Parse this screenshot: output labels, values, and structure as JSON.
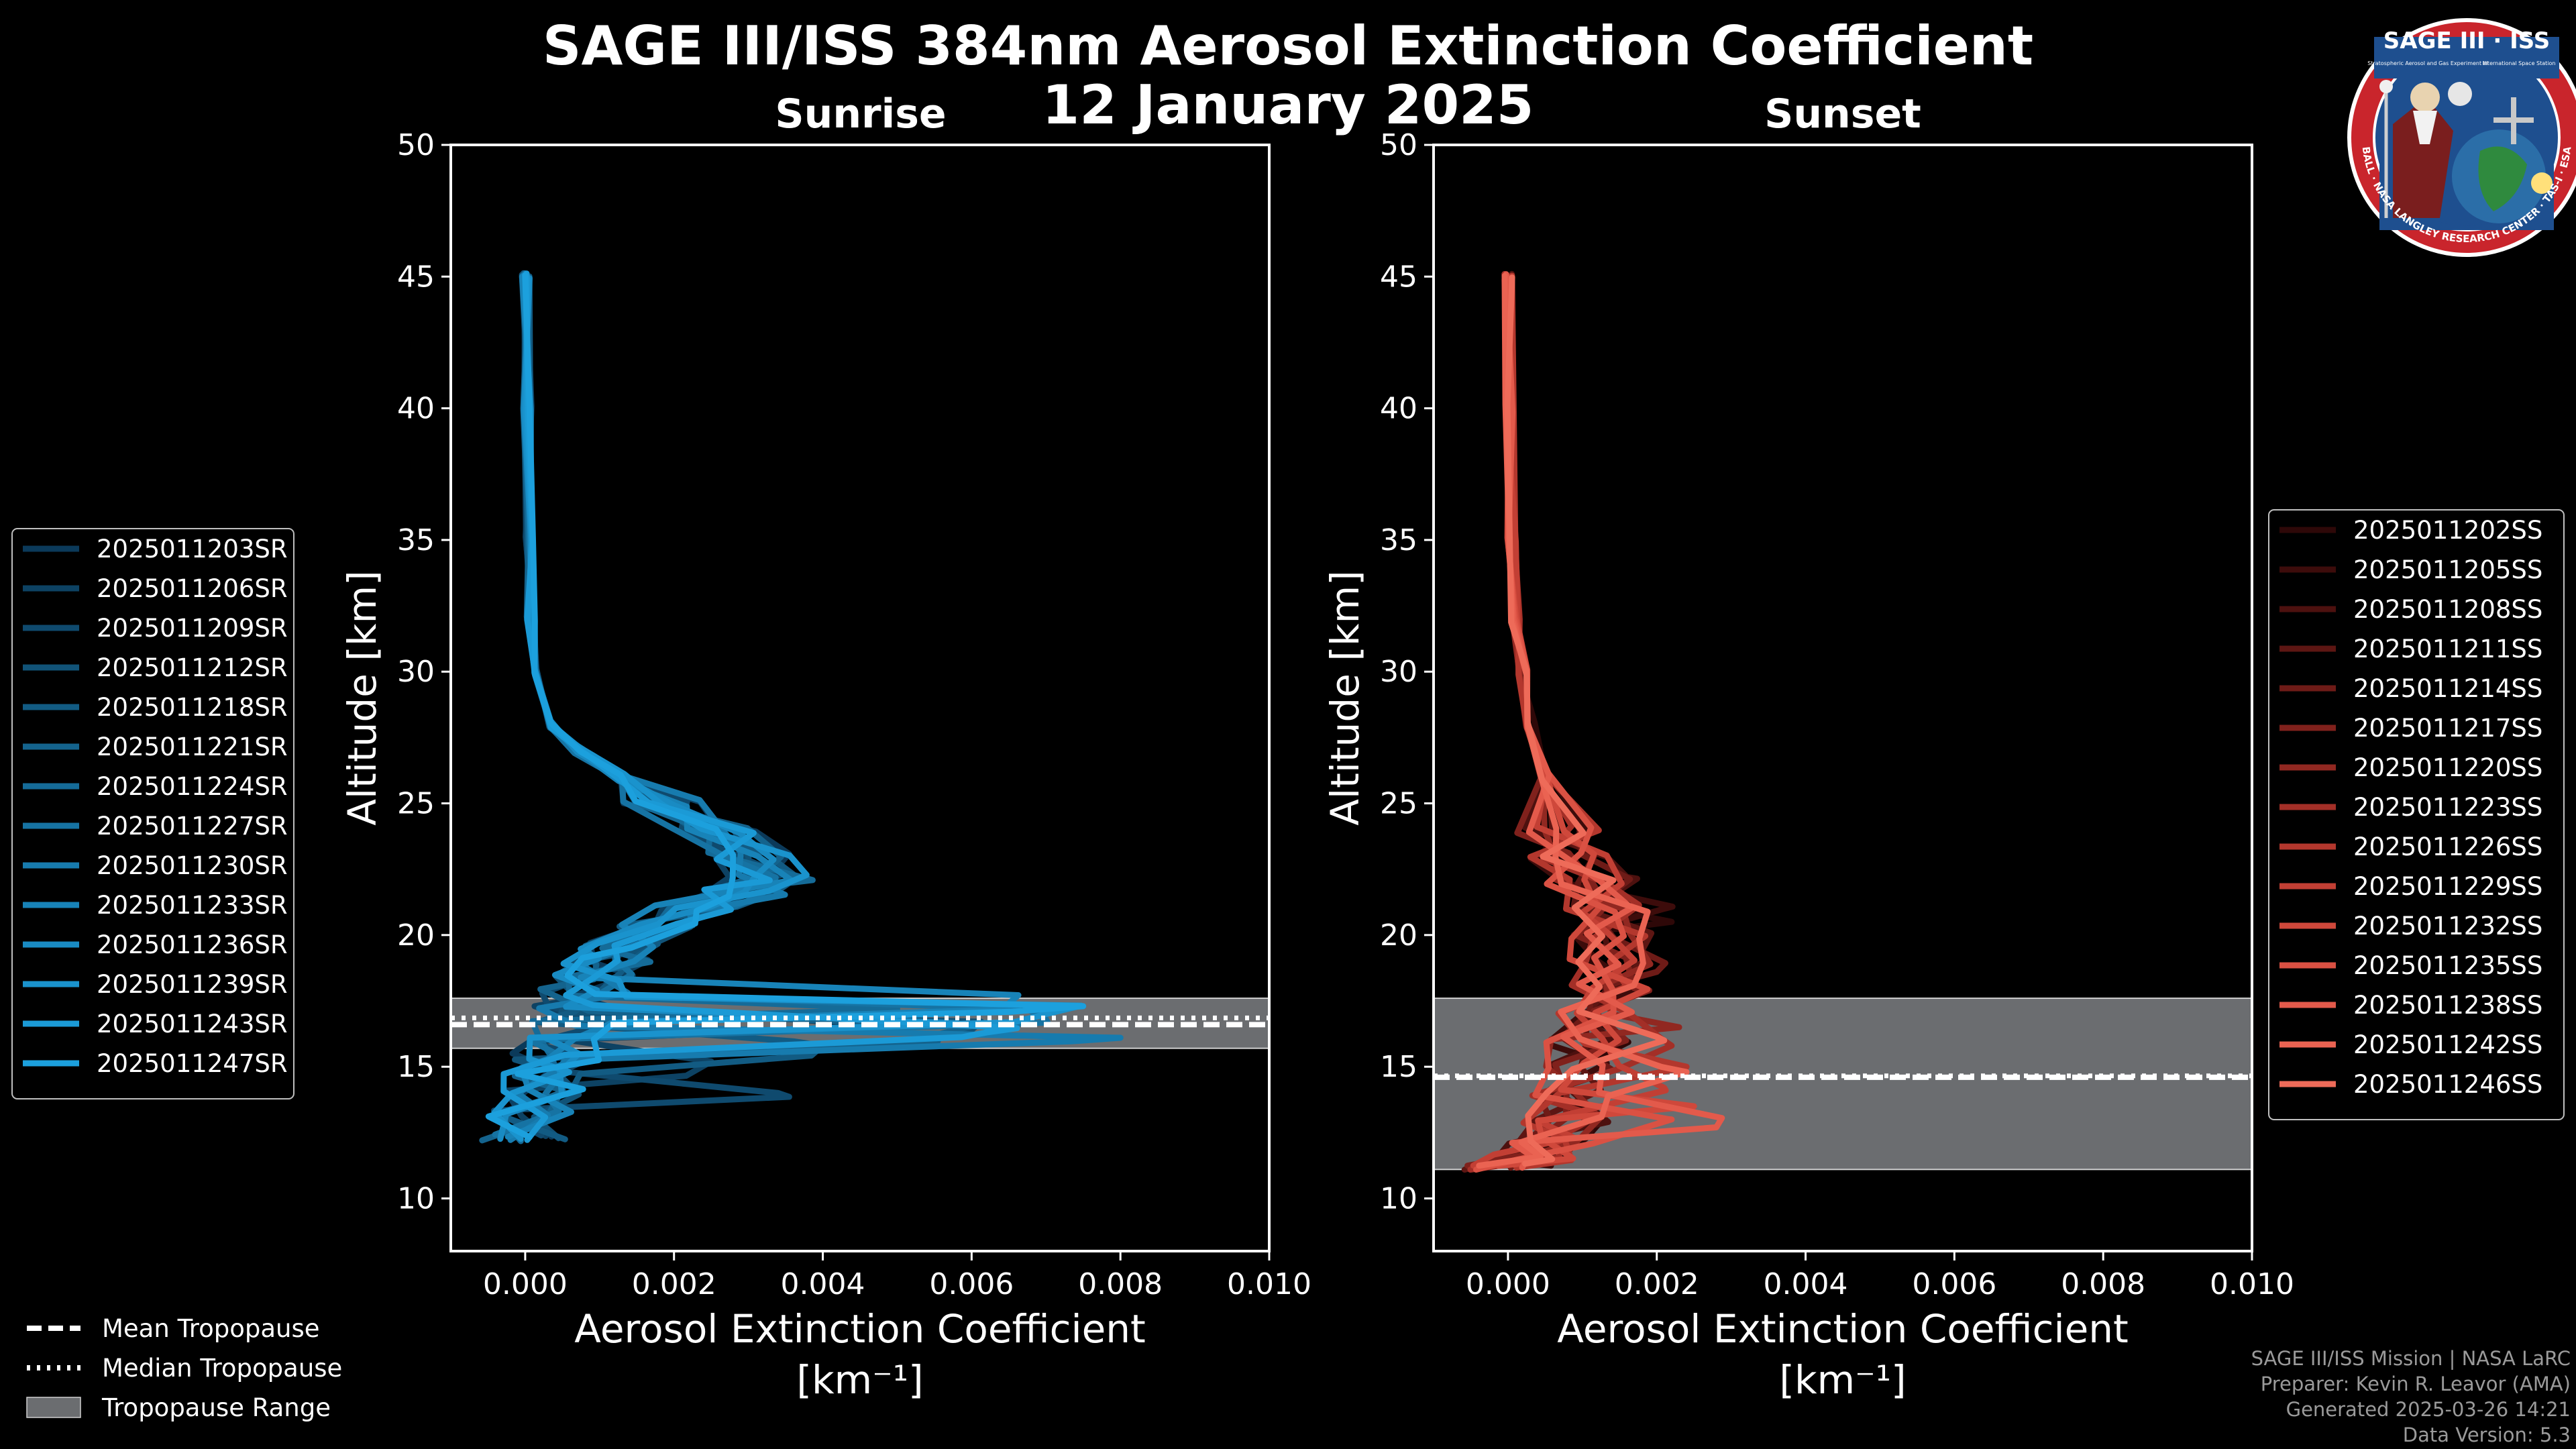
{
  "title": "SAGE III/ISS 384nm Aerosol Extinction Coefficient",
  "subtitle": "12 January 2025",
  "logo": {
    "top_text": "SAGE III · ISS",
    "small_text_left": "Stratospheric Aerosol and Gas Experiment III",
    "small_text_right": "International Space Station",
    "ring_text": "BALL · NASA LANGLEY RESEARCH CENTER · TAS-I · ESA"
  },
  "legend_bottom": [
    {
      "label": "Mean Tropopause",
      "style": "dashed"
    },
    {
      "label": "Median Tropopause",
      "style": "dotted"
    },
    {
      "label": "Tropopause Range",
      "style": "patch"
    }
  ],
  "footer": [
    "SAGE III/ISS Mission | NASA LaRC",
    "Preparer: Kevin R. Leavor (AMA)",
    "Generated 2025-03-26 14:21",
    "Data Version: 5.3"
  ],
  "chart_data": [
    {
      "type": "line",
      "title": "Sunrise",
      "xlabel": "Aerosol Extinction Coefficient",
      "xunit": "[km⁻¹]",
      "ylabel": "Altitude [km]",
      "xlim": [
        -0.001,
        0.01
      ],
      "ylim": [
        8,
        50
      ],
      "xticks": [
        "0.000",
        "0.002",
        "0.004",
        "0.006",
        "0.008",
        "0.010"
      ],
      "yticks": [
        "10",
        "15",
        "20",
        "25",
        "30",
        "35",
        "40",
        "45",
        "50"
      ],
      "tropopause": {
        "mean": 16.6,
        "median": 16.7,
        "range": [
          15.7,
          17.6
        ]
      },
      "base_profile": [
        [
          1e-05,
          45
        ],
        [
          3e-05,
          40
        ],
        [
          5e-05,
          35
        ],
        [
          8e-05,
          32
        ],
        [
          0.00015,
          30
        ],
        [
          0.0003,
          28
        ],
        [
          0.0007,
          27
        ],
        [
          0.0013,
          26
        ],
        [
          0.0019,
          25
        ],
        [
          0.0025,
          24
        ],
        [
          0.003,
          23
        ],
        [
          0.0033,
          22.2
        ],
        [
          0.0029,
          21.6
        ],
        [
          0.0023,
          21
        ],
        [
          0.0017,
          20.3
        ],
        [
          0.0013,
          19.6
        ],
        [
          0.0011,
          19
        ],
        [
          0.0009,
          18.4
        ],
        [
          0.0008,
          17.8
        ],
        [
          0.0007,
          17.2
        ],
        [
          0.0006,
          16.6
        ],
        [
          0.0005,
          16
        ],
        [
          0.0004,
          15.4
        ],
        [
          0.0003,
          14.8
        ],
        [
          0.0002,
          14
        ],
        [
          0.0001,
          13.2
        ],
        [
          0.0,
          12.3
        ]
      ],
      "series": [
        {
          "name": "2025011203SR",
          "color": "#0b3a5a",
          "spike": 0.0045,
          "spike_alt": 16.5,
          "seed": 1
        },
        {
          "name": "2025011206SR",
          "color": "#0d4263",
          "spike": 0.0025,
          "spike_alt": 15.2,
          "seed": 2
        },
        {
          "name": "2025011209SR",
          "color": "#0f4a6e",
          "spike": 0.0034,
          "spike_alt": 14.0,
          "seed": 3
        },
        {
          "name": "2025011212SR",
          "color": "#115378",
          "spike": 0.006,
          "spike_alt": 16.4,
          "seed": 4
        },
        {
          "name": "2025011218SR",
          "color": "#125b83",
          "spike": 0.004,
          "spike_alt": 15.8,
          "seed": 5
        },
        {
          "name": "2025011221SR",
          "color": "#14638d",
          "spike": 0.0055,
          "spike_alt": 16.2,
          "seed": 6
        },
        {
          "name": "2025011224SR",
          "color": "#156b98",
          "spike": 0.005,
          "spike_alt": 17.2,
          "seed": 7
        },
        {
          "name": "2025011227SR",
          "color": "#1673a3",
          "spike": 0.007,
          "spike_alt": 16.8,
          "seed": 8
        },
        {
          "name": "2025011230SR",
          "color": "#177bae",
          "spike": 0.008,
          "spike_alt": 16.1,
          "seed": 9
        },
        {
          "name": "2025011233SR",
          "color": "#1883b8",
          "spike": 0.0065,
          "spike_alt": 17.4,
          "seed": 10
        },
        {
          "name": "2025011236SR",
          "color": "#198bc3",
          "spike": 0.0058,
          "spike_alt": 16.6,
          "seed": 11
        },
        {
          "name": "2025011239SR",
          "color": "#1a93cd",
          "spike": 0.007,
          "spike_alt": 17.0,
          "seed": 12
        },
        {
          "name": "2025011243SR",
          "color": "#1b9ad6",
          "spike": 0.0062,
          "spike_alt": 16.3,
          "seed": 13
        },
        {
          "name": "2025011247SR",
          "color": "#1ca0dd",
          "spike": 0.0075,
          "spike_alt": 17.3,
          "seed": 14
        }
      ]
    },
    {
      "type": "line",
      "title": "Sunset",
      "xlabel": "Aerosol Extinction Coefficient",
      "xunit": "[km⁻¹]",
      "ylabel": "Altitude [km]",
      "xlim": [
        -0.001,
        0.01
      ],
      "ylim": [
        8,
        50
      ],
      "xticks": [
        "0.000",
        "0.002",
        "0.004",
        "0.006",
        "0.008",
        "0.010"
      ],
      "yticks": [
        "10",
        "15",
        "20",
        "25",
        "30",
        "35",
        "40",
        "45",
        "50"
      ],
      "tropopause": {
        "mean": 14.6,
        "median": 14.5,
        "range": [
          11.1,
          17.6
        ]
      },
      "base_profile": [
        [
          0.0,
          45
        ],
        [
          2e-05,
          40
        ],
        [
          5e-05,
          35
        ],
        [
          0.0001,
          32
        ],
        [
          0.0002,
          30
        ],
        [
          0.0003,
          28
        ],
        [
          0.0005,
          26
        ],
        [
          0.0007,
          24
        ],
        [
          0.0009,
          23
        ],
        [
          0.0011,
          22
        ],
        [
          0.0013,
          21
        ],
        [
          0.0014,
          20
        ],
        [
          0.0014,
          19
        ],
        [
          0.0013,
          18
        ],
        [
          0.0012,
          17
        ],
        [
          0.0011,
          16
        ],
        [
          0.001,
          15
        ],
        [
          0.0009,
          14
        ],
        [
          0.0008,
          13
        ],
        [
          0.0006,
          12.2
        ],
        [
          0.0003,
          11.6
        ],
        [
          0.0,
          11.2
        ]
      ],
      "series": [
        {
          "name": "2025011202SS",
          "color": "#2e0808",
          "spike": 0.0022,
          "spike_alt": 20.5,
          "seed": 21
        },
        {
          "name": "2025011205SS",
          "color": "#3d0c0b",
          "spike": 0.0021,
          "spike_alt": 21.0,
          "seed": 22
        },
        {
          "name": "2025011208SS",
          "color": "#4d110f",
          "spike": 0.0016,
          "spike_alt": 22.2,
          "seed": 23
        },
        {
          "name": "2025011211SS",
          "color": "#5d1613",
          "spike": 0.0018,
          "spike_alt": 19.4,
          "seed": 24
        },
        {
          "name": "2025011214SS",
          "color": "#6e1b17",
          "spike": 0.002,
          "spike_alt": 18.6,
          "seed": 25
        },
        {
          "name": "2025011217SS",
          "color": "#80211c",
          "spike": 0.0019,
          "spike_alt": 17.9,
          "seed": 26
        },
        {
          "name": "2025011220SS",
          "color": "#912821",
          "spike": 0.0023,
          "spike_alt": 16.5,
          "seed": 27
        },
        {
          "name": "2025011223SS",
          "color": "#a32f27",
          "spike": 0.0022,
          "spike_alt": 15.8,
          "seed": 28
        },
        {
          "name": "2025011226SS",
          "color": "#b3372d",
          "spike": 0.0024,
          "spike_alt": 15.0,
          "seed": 29
        },
        {
          "name": "2025011229SS",
          "color": "#c23f34",
          "spike": 0.0021,
          "spike_alt": 14.2,
          "seed": 30
        },
        {
          "name": "2025011232SS",
          "color": "#cf483b",
          "spike": 0.0025,
          "spike_alt": 13.5,
          "seed": 31
        },
        {
          "name": "2025011235SS",
          "color": "#da5143",
          "spike": 0.0022,
          "spike_alt": 13.0,
          "seed": 32
        },
        {
          "name": "2025011238SS",
          "color": "#e35a4b",
          "spike": 0.0028,
          "spike_alt": 12.7,
          "seed": 33
        },
        {
          "name": "2025011242SS",
          "color": "#ea6352",
          "spike": 0.0024,
          "spike_alt": 14.8,
          "seed": 34
        },
        {
          "name": "2025011246SS",
          "color": "#ee6b59",
          "spike": 0.0021,
          "spike_alt": 16.0,
          "seed": 35
        }
      ]
    }
  ]
}
